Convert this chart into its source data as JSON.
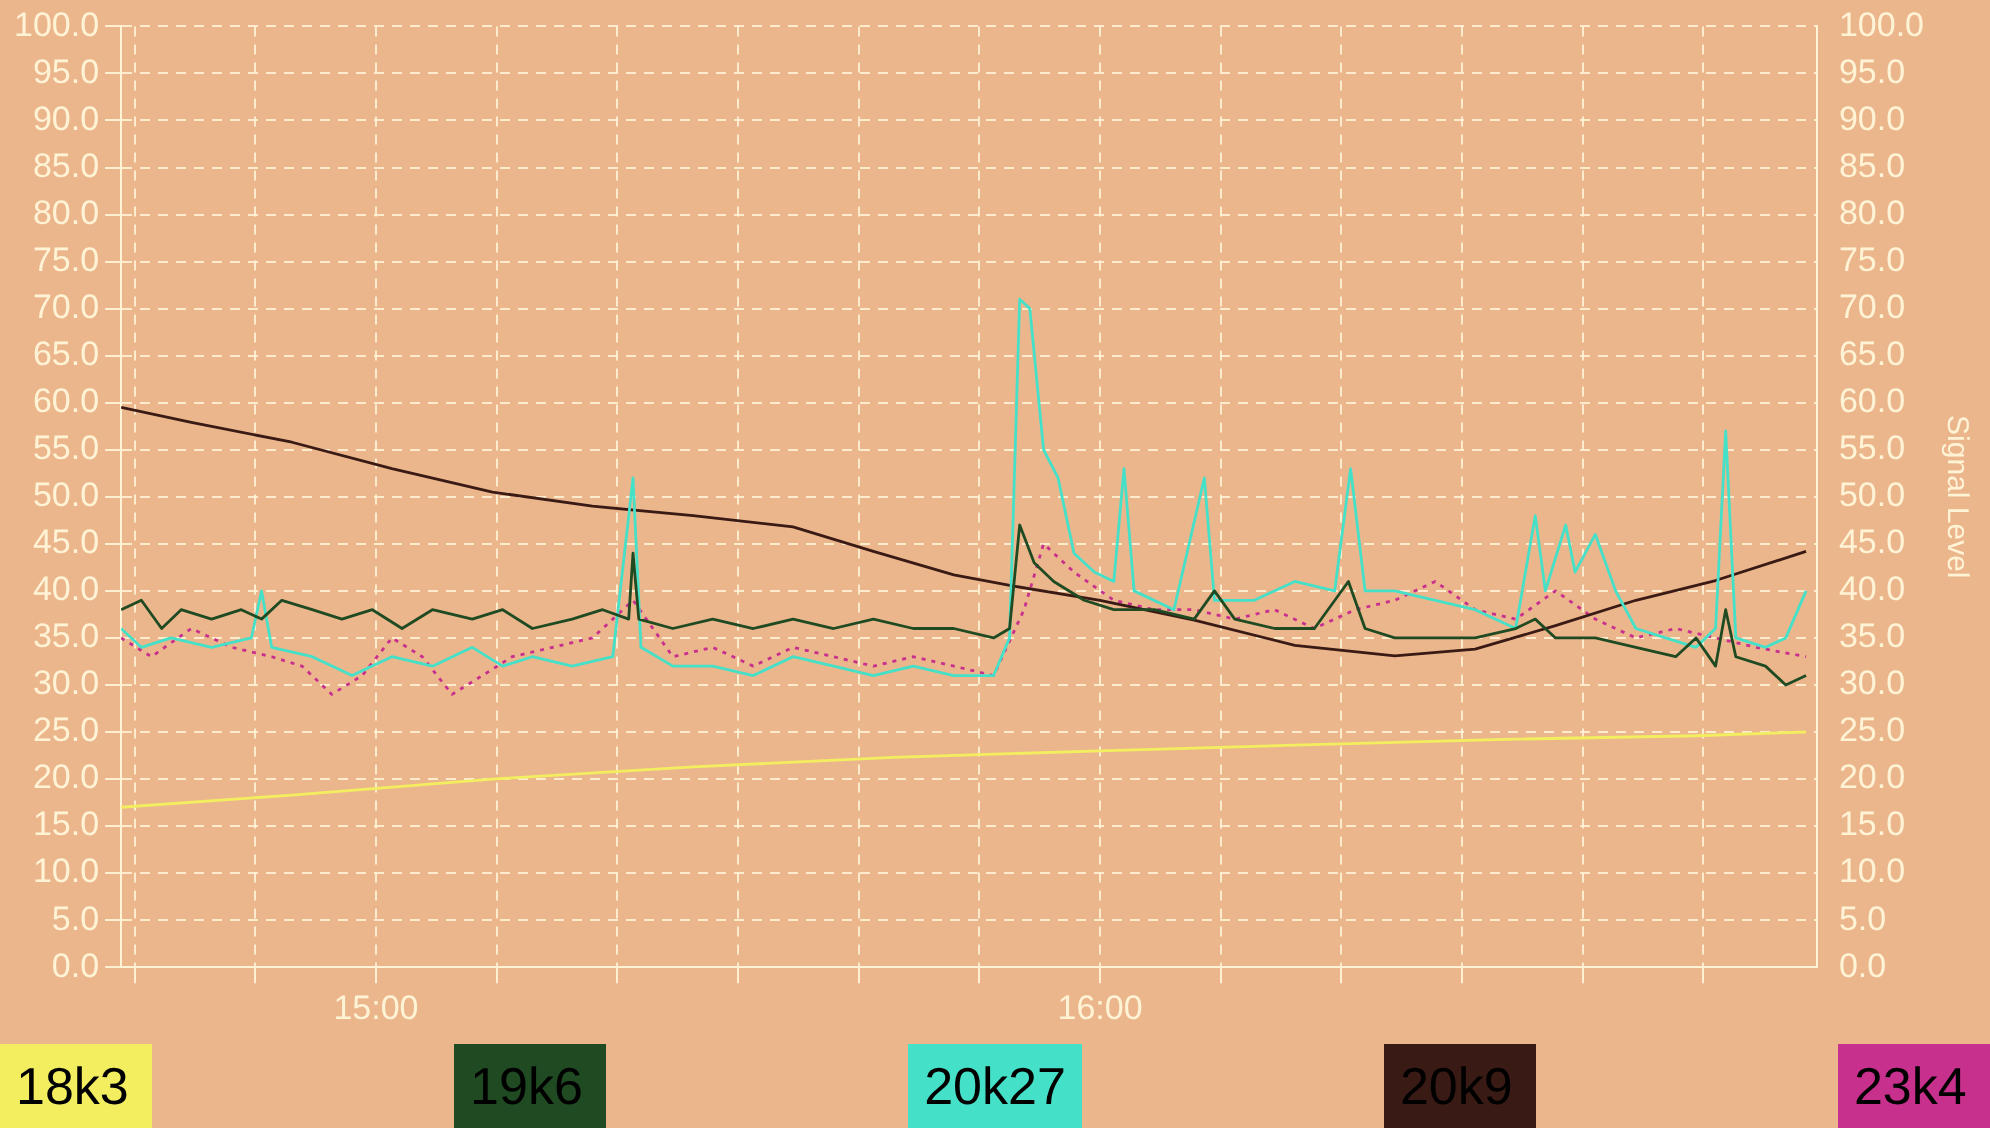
{
  "chart_data": {
    "type": "line",
    "y2label": "Signal Level",
    "legend": "bottom",
    "grid": true,
    "marker": "none",
    "xlim": [
      14.648,
      16.99
    ],
    "xticks": [
      {
        "value": 14.6667,
        "label": null
      },
      {
        "value": 14.8333,
        "label": null
      },
      {
        "value": 15,
        "label": "15:00"
      },
      {
        "value": 15.1667,
        "label": null
      },
      {
        "value": 15.3333,
        "label": null
      },
      {
        "value": 15.5,
        "label": null
      },
      {
        "value": 15.6667,
        "label": null
      },
      {
        "value": 15.8333,
        "label": null
      },
      {
        "value": 16,
        "label": "16:00"
      },
      {
        "value": 16.1667,
        "label": null
      },
      {
        "value": 16.3333,
        "label": null
      },
      {
        "value": 16.5,
        "label": null
      },
      {
        "value": 16.6667,
        "label": null
      },
      {
        "value": 16.8333,
        "label": null
      }
    ],
    "ylim": [
      0,
      100
    ],
    "yticks": [
      {
        "value": 0,
        "label": "0.0"
      },
      {
        "value": 5,
        "label": "5.0"
      },
      {
        "value": 10,
        "label": "10.0"
      },
      {
        "value": 15,
        "label": "15.0"
      },
      {
        "value": 20,
        "label": "20.0"
      },
      {
        "value": 25,
        "label": "25.0"
      },
      {
        "value": 30,
        "label": "30.0"
      },
      {
        "value": 35,
        "label": "35.0"
      },
      {
        "value": 40,
        "label": "40.0"
      },
      {
        "value": 45,
        "label": "45.0"
      },
      {
        "value": 50,
        "label": "50.0"
      },
      {
        "value": 55,
        "label": "55.0"
      },
      {
        "value": 60,
        "label": "60.0"
      },
      {
        "value": 65,
        "label": "65.0"
      },
      {
        "value": 70,
        "label": "70.0"
      },
      {
        "value": 75,
        "label": "75.0"
      },
      {
        "value": 80,
        "label": "80.0"
      },
      {
        "value": 85,
        "label": "85.0"
      },
      {
        "value": 90,
        "label": "90.0"
      },
      {
        "value": 95,
        "label": "95.0"
      },
      {
        "value": 100,
        "label": "100.0"
      }
    ],
    "y2lim": [
      0,
      100
    ],
    "y2ticks": [
      {
        "value": 0,
        "label": "0.0"
      },
      {
        "value": 5,
        "label": "5.0"
      },
      {
        "value": 10,
        "label": "10.0"
      },
      {
        "value": 15,
        "label": "15.0"
      },
      {
        "value": 20,
        "label": "20.0"
      },
      {
        "value": 25,
        "label": "25.0"
      },
      {
        "value": 30,
        "label": "30.0"
      },
      {
        "value": 35,
        "label": "35.0"
      },
      {
        "value": 40,
        "label": "40.0"
      },
      {
        "value": 45,
        "label": "45.0"
      },
      {
        "value": 50,
        "label": "50.0"
      },
      {
        "value": 55,
        "label": "55.0"
      },
      {
        "value": 60,
        "label": "60.0"
      },
      {
        "value": 65,
        "label": "65.0"
      },
      {
        "value": 70,
        "label": "70.0"
      },
      {
        "value": 75,
        "label": "75.0"
      },
      {
        "value": 80,
        "label": "80.0"
      },
      {
        "value": 85,
        "label": "85.0"
      },
      {
        "value": 90,
        "label": "90.0"
      },
      {
        "value": 95,
        "label": "95.0"
      },
      {
        "value": 100,
        "label": "100.0"
      }
    ],
    "series": [
      {
        "name": "18k3",
        "color": "#f2ee60",
        "x": [
          14.648,
          14.884,
          15.161,
          15.438,
          15.715,
          16,
          16.269,
          16.546,
          16.823,
          16.975
        ],
        "values": [
          17,
          18.3,
          20,
          21.3,
          22.3,
          23,
          23.6,
          24.2,
          24.6,
          25
        ]
      },
      {
        "name": "19k6",
        "color": "#1f4a22",
        "x": [
          14.648,
          14.676,
          14.704,
          14.731,
          14.773,
          14.814,
          14.842,
          14.87,
          14.912,
          14.953,
          14.995,
          15.036,
          15.078,
          15.133,
          15.175,
          15.216,
          15.271,
          15.313,
          15.349,
          15.355,
          15.363,
          15.41,
          15.465,
          15.521,
          15.576,
          15.632,
          15.687,
          15.742,
          15.798,
          15.853,
          15.875,
          15.889,
          15.909,
          15.936,
          15.978,
          16.019,
          16.075,
          16.13,
          16.158,
          16.186,
          16.241,
          16.296,
          16.343,
          16.366,
          16.407,
          16.463,
          16.518,
          16.574,
          16.601,
          16.629,
          16.684,
          16.74,
          16.795,
          16.823,
          16.85,
          16.864,
          16.878,
          16.919,
          16.947,
          16.975
        ],
        "values": [
          38,
          39,
          36,
          38,
          37,
          38,
          37,
          39,
          38,
          37,
          38,
          36,
          38,
          37,
          38,
          36,
          37,
          38,
          37,
          44,
          37,
          36,
          37,
          36,
          37,
          36,
          37,
          36,
          36,
          35,
          36,
          47,
          43,
          41,
          39,
          38,
          38,
          37,
          40,
          37,
          36,
          36,
          41,
          36,
          35,
          35,
          35,
          36,
          37,
          35,
          35,
          34,
          33,
          35,
          32,
          38,
          33,
          32,
          30,
          31
        ]
      },
      {
        "name": "20k27",
        "color": "#45e0c8",
        "x": [
          14.648,
          14.676,
          14.717,
          14.773,
          14.828,
          14.842,
          14.856,
          14.912,
          14.967,
          15.022,
          15.078,
          15.133,
          15.175,
          15.216,
          15.271,
          15.327,
          15.355,
          15.366,
          15.41,
          15.465,
          15.521,
          15.576,
          15.632,
          15.687,
          15.742,
          15.798,
          15.853,
          15.875,
          15.889,
          15.903,
          15.922,
          15.942,
          15.964,
          15.992,
          16.019,
          16.033,
          16.047,
          16.102,
          16.144,
          16.158,
          16.213,
          16.269,
          16.324,
          16.346,
          16.366,
          16.407,
          16.463,
          16.518,
          16.574,
          16.601,
          16.615,
          16.643,
          16.656,
          16.684,
          16.712,
          16.74,
          16.781,
          16.823,
          16.85,
          16.864,
          16.878,
          16.919,
          16.947,
          16.975
        ],
        "values": [
          36,
          34,
          35,
          34,
          35,
          40,
          34,
          33,
          31,
          33,
          32,
          34,
          32,
          33,
          32,
          33,
          52,
          34,
          32,
          32,
          31,
          33,
          32,
          31,
          32,
          31,
          31,
          35,
          71,
          70,
          55,
          52,
          44,
          42,
          41,
          53,
          40,
          38,
          52,
          39,
          39,
          41,
          40,
          53,
          40,
          40,
          39,
          38,
          36,
          48,
          40,
          47,
          42,
          46,
          40,
          36,
          35,
          34,
          36,
          57,
          35,
          34,
          35,
          40
        ]
      },
      {
        "name": "20k9",
        "color": "#3a1a14",
        "x": [
          14.648,
          14.745,
          14.884,
          15.022,
          15.161,
          15.299,
          15.438,
          15.576,
          15.687,
          15.798,
          15.881,
          16,
          16.13,
          16.269,
          16.407,
          16.518,
          16.629,
          16.74,
          16.85,
          16.975
        ],
        "values": [
          59.5,
          57.9,
          55.8,
          53,
          50.5,
          49,
          48,
          46.8,
          44.2,
          41.7,
          40.5,
          39,
          36.9,
          34.2,
          33.1,
          33.8,
          36.3,
          39,
          41.1,
          44.2
        ]
      },
      {
        "name": "23k4",
        "color": "#c8308e",
        "line_style": "dotted",
        "x": [
          14.648,
          14.69,
          14.745,
          14.801,
          14.856,
          14.898,
          14.939,
          14.981,
          15.022,
          15.064,
          15.105,
          15.147,
          15.188,
          15.244,
          15.299,
          15.355,
          15.41,
          15.465,
          15.521,
          15.576,
          15.632,
          15.687,
          15.742,
          15.798,
          15.853,
          15.895,
          15.922,
          15.964,
          16.019,
          16.075,
          16.13,
          16.186,
          16.241,
          16.296,
          16.352,
          16.407,
          16.463,
          16.518,
          16.574,
          16.629,
          16.684,
          16.74,
          16.795,
          16.85,
          16.906,
          16.975
        ],
        "values": [
          35,
          33,
          36,
          34,
          33,
          32,
          29,
          31,
          35,
          33,
          29,
          31,
          33,
          34,
          35,
          39,
          33,
          34,
          32,
          34,
          33,
          32,
          33,
          32,
          31,
          38,
          45,
          42,
          39,
          38,
          38,
          37,
          38,
          36,
          38,
          39,
          41,
          38,
          37,
          40,
          37,
          35,
          36,
          35,
          34,
          33
        ]
      }
    ]
  }
}
